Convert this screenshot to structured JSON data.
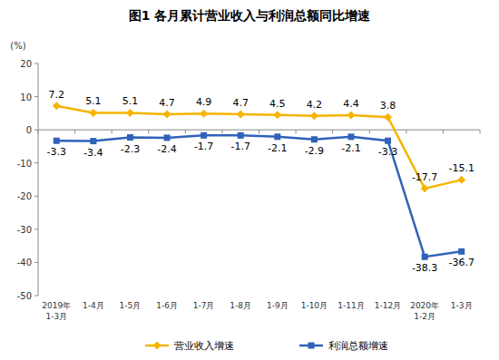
{
  "chart_data": {
    "type": "line",
    "title": "图1 各月累计营业收入与利润总额同比增速",
    "y_label": "(%)",
    "categories": [
      "2019年\n1-3月",
      "1-4月",
      "1-5月",
      "1-6月",
      "1-7月",
      "1-8月",
      "1-9月",
      "1-10月",
      "1-11月",
      "1-12月",
      "2020年\n1-2月",
      "1-3月"
    ],
    "series": [
      {
        "name": "营业收入增速",
        "color": "#f5b400",
        "marker": "diamond",
        "values": [
          7.2,
          5.1,
          5.1,
          4.7,
          4.9,
          4.7,
          4.5,
          4.2,
          4.4,
          3.8,
          -17.7,
          -15.1
        ]
      },
      {
        "name": "利润总额增速",
        "color": "#2f62b8",
        "marker": "square",
        "values": [
          -3.3,
          -3.4,
          -2.3,
          -2.4,
          -1.7,
          -1.7,
          -2.1,
          -2.9,
          -2.1,
          -3.3,
          -38.3,
          -36.7
        ]
      }
    ],
    "ylim": [
      -50,
      20
    ],
    "yticks": [
      -50,
      -40,
      -30,
      -20,
      -10,
      0,
      10,
      20
    ],
    "grid": false,
    "legend": "bottom",
    "data_labels": true
  }
}
